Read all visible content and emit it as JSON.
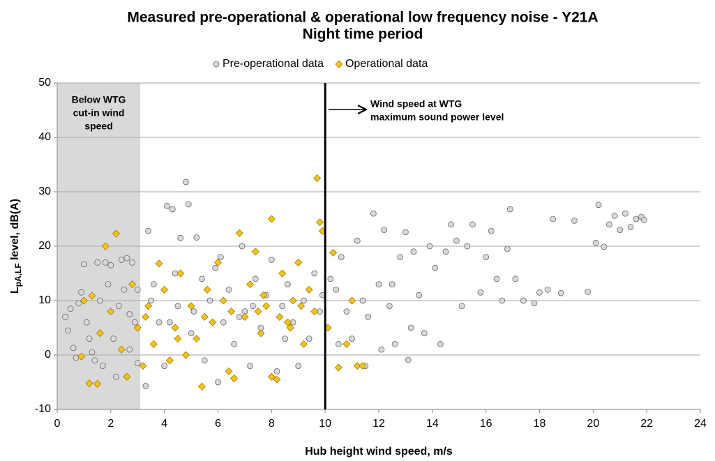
{
  "chart_data": {
    "type": "scatter",
    "title": [
      "Measured pre-operational & operational low frequency noise - Y21A",
      "Night time period"
    ],
    "x_label": "Hub height wind speed, m/s",
    "y_label": {
      "main": "L",
      "sub": "pA,LF",
      "rest": " level, dB(A)"
    },
    "xlim": [
      0,
      24
    ],
    "xticks": [
      0,
      2,
      4,
      6,
      8,
      10,
      12,
      14,
      16,
      18,
      20,
      22,
      24
    ],
    "ylim": [
      -10,
      50
    ],
    "yticks": [
      -10,
      0,
      10,
      20,
      30,
      40,
      50
    ],
    "grid": true,
    "legend": "top",
    "cutin_region": [
      0,
      3.1
    ],
    "cutin_label": [
      "Below WTG",
      "cut-in wind",
      "speed"
    ],
    "rated_wind_speed": 10,
    "rated_label": [
      "Wind speed at WTG",
      "maximum sound power level"
    ],
    "series": [
      {
        "name": "Pre-operational data",
        "marker": "circle",
        "color": "#d9d9d9",
        "edge": "#666666",
        "x": [
          0.3,
          0.4,
          0.5,
          0.6,
          0.8,
          0.9,
          1.0,
          1.1,
          1.2,
          1.3,
          1.5,
          1.6,
          1.7,
          1.8,
          1.9,
          2.0,
          2.1,
          2.2,
          2.3,
          2.4,
          2.5,
          2.6,
          2.7,
          2.8,
          2.9,
          3.0,
          3.0,
          2.7,
          1.4,
          0.7,
          3.3,
          3.4,
          3.6,
          3.8,
          4.0,
          4.1,
          4.3,
          4.5,
          4.6,
          4.8,
          4.9,
          5.0,
          5.2,
          5.4,
          5.5,
          5.7,
          5.9,
          6.0,
          6.2,
          6.4,
          6.6,
          6.9,
          7.0,
          7.2,
          7.4,
          7.6,
          7.8,
          8.0,
          8.2,
          8.4,
          8.6,
          8.8,
          9.0,
          9.2,
          9.4,
          9.6,
          9.8,
          9.9,
          4.2,
          5.1,
          6.8,
          7.3,
          8.5,
          3.5,
          4.4,
          6.1,
          10.2,
          10.4,
          10.6,
          10.8,
          11.0,
          11.2,
          11.4,
          11.6,
          11.8,
          12.0,
          12.2,
          12.4,
          12.6,
          12.8,
          13.0,
          13.1,
          13.3,
          13.5,
          13.7,
          13.9,
          14.1,
          14.3,
          14.5,
          14.7,
          14.9,
          15.1,
          15.3,
          15.5,
          15.8,
          16.0,
          16.2,
          16.4,
          16.6,
          16.8,
          16.9,
          17.1,
          17.4,
          17.8,
          18.0,
          18.3,
          18.5,
          18.8,
          19.3,
          19.8,
          20.1,
          20.2,
          20.4,
          20.6,
          20.8,
          21.0,
          21.2,
          21.4,
          21.6,
          21.8,
          21.9,
          10.5,
          11.5,
          12.1,
          12.5,
          13.2
        ],
        "values": [
          7,
          4.5,
          8.5,
          1.3,
          9.5,
          11.5,
          16.7,
          6,
          3,
          0.5,
          17,
          10,
          -2,
          17,
          13,
          16.5,
          3,
          -4,
          9,
          17.5,
          12,
          17.8,
          1,
          17,
          6,
          -1.5,
          12,
          7.5,
          -1,
          -0.5,
          -5.7,
          22.8,
          13,
          6,
          -2,
          27.4,
          26.8,
          9,
          21.5,
          31.8,
          27.7,
          4,
          21.6,
          14,
          -1,
          10,
          16,
          -5,
          6,
          12,
          2,
          20,
          8,
          -2,
          14,
          5,
          11,
          17.5,
          -3,
          9,
          13,
          6,
          -2,
          10,
          3,
          15,
          8,
          11,
          6,
          8,
          7,
          9,
          3,
          10,
          15,
          18,
          14,
          12,
          18,
          8,
          3,
          21,
          10,
          7,
          26,
          13,
          23,
          9,
          2,
          18,
          22.6,
          -0.9,
          19,
          11,
          4,
          20,
          16,
          2,
          19,
          24,
          21,
          9,
          20,
          24,
          11.5,
          18,
          22.8,
          14,
          10,
          19.5,
          26.8,
          14,
          10,
          9.5,
          11.5,
          12,
          25,
          11.4,
          24.7,
          11.6,
          20.6,
          27.6,
          19.9,
          24,
          25.6,
          23,
          26,
          23.5,
          25,
          25.4,
          24.8,
          2,
          -2,
          1,
          13,
          5
        ]
      },
      {
        "name": "Operational data",
        "marker": "diamond",
        "color": "#f2c31f",
        "edge": "#a67c00",
        "x": [
          0.9,
          1.0,
          1.2,
          1.3,
          1.5,
          1.6,
          1.8,
          2.0,
          2.2,
          2.4,
          2.6,
          2.8,
          3.0,
          3.2,
          3.4,
          3.6,
          3.8,
          4.0,
          4.2,
          4.4,
          4.6,
          4.8,
          5.0,
          5.2,
          5.4,
          5.6,
          5.8,
          6.0,
          6.2,
          6.4,
          6.6,
          6.8,
          7.0,
          7.2,
          7.4,
          7.6,
          7.8,
          8.0,
          8.0,
          8.2,
          8.4,
          8.6,
          8.8,
          9.0,
          9.2,
          9.4,
          9.6,
          9.7,
          9.8,
          9.9,
          10.1,
          10.3,
          10.5,
          10.8,
          11.0,
          11.2,
          11.4,
          7.5,
          8.3,
          9.1,
          6.5,
          7.7,
          8.7,
          5.5,
          4.5,
          3.3
        ],
        "values": [
          -0.3,
          10,
          -5.2,
          10.9,
          -5.3,
          4,
          20,
          8,
          22.3,
          1,
          -4,
          13,
          5,
          -2,
          9,
          2,
          16.8,
          12,
          -1,
          5,
          15,
          0,
          9,
          3,
          -5.8,
          12,
          6,
          17,
          10,
          -3,
          -4.3,
          22.4,
          7,
          13,
          19,
          4,
          9,
          25,
          -4,
          -4.5,
          15,
          6,
          10,
          17,
          2,
          12,
          8,
          32.5,
          24.4,
          22.8,
          5,
          18.8,
          -2.3,
          2,
          10,
          -2,
          -2,
          8,
          7,
          9,
          8,
          11,
          5,
          7,
          3,
          7
        ]
      }
    ]
  }
}
